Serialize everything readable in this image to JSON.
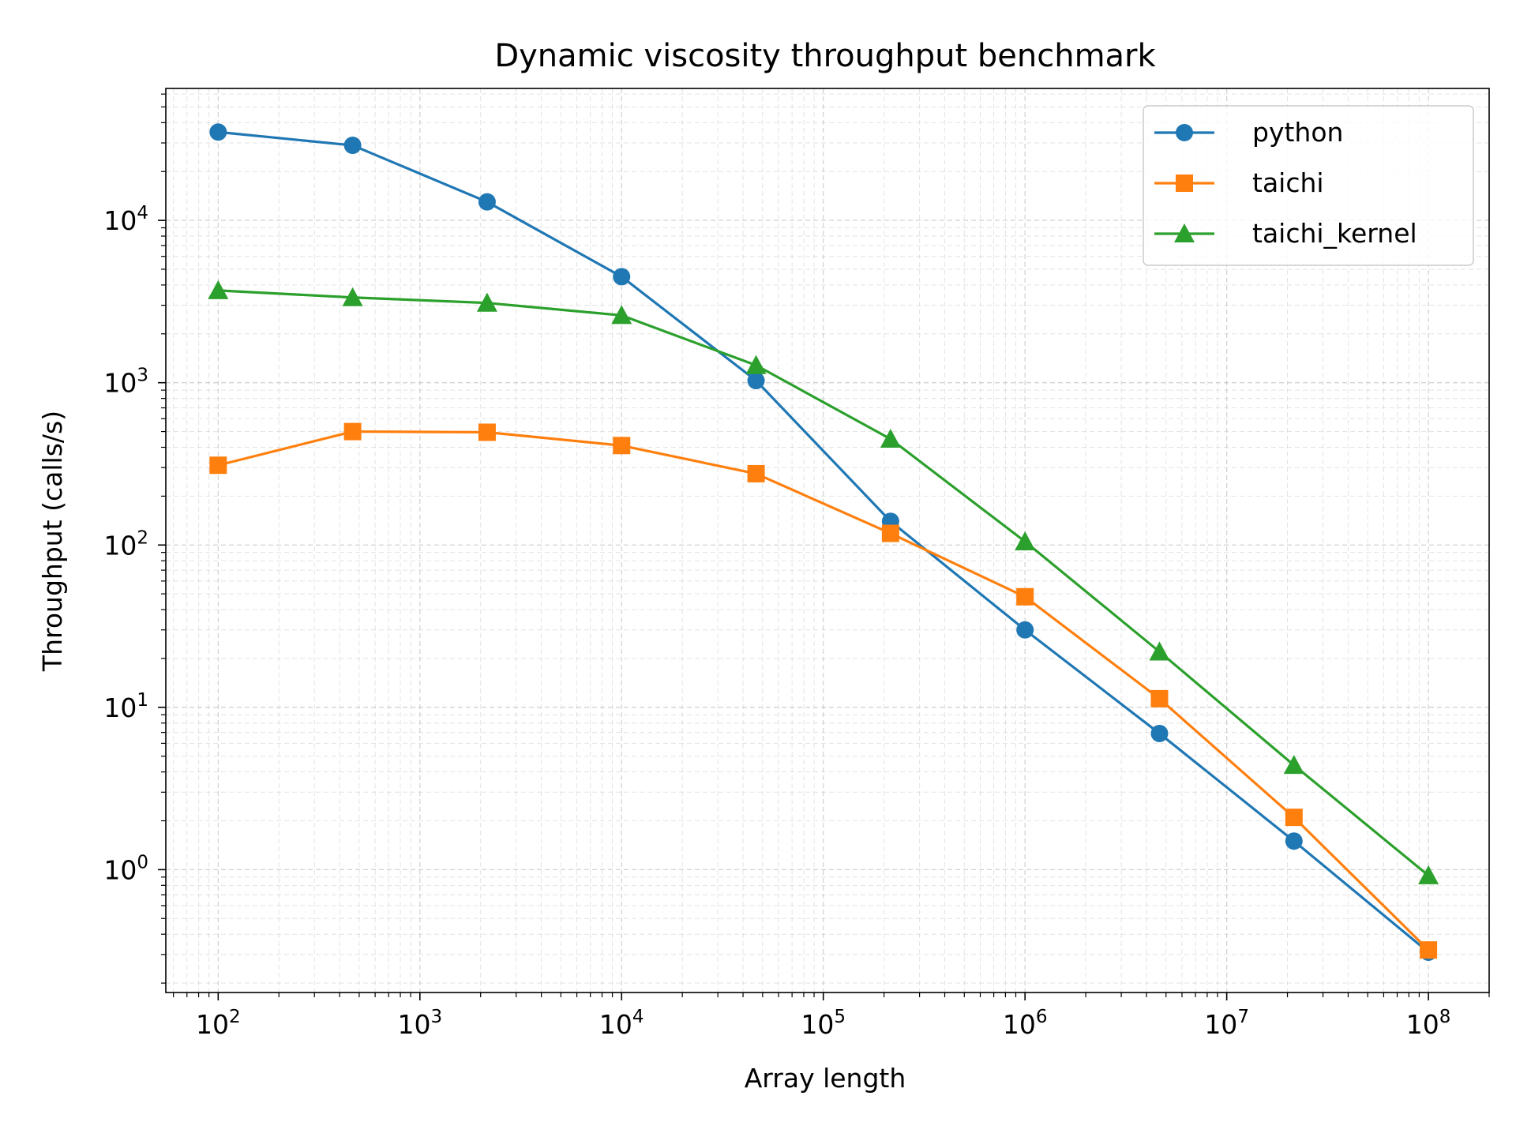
{
  "chart_data": {
    "type": "line",
    "title": "Dynamic viscosity throughput benchmark",
    "xlabel": "Array length",
    "ylabel": "Throughput (calls/s)",
    "xscale": "log",
    "yscale": "log",
    "xlim": [
      55,
      200000000
    ],
    "ylim": [
      0.175,
      65000
    ],
    "grid": true,
    "legend_position": "top-right",
    "x": [
      100,
      464,
      2154,
      10000,
      46416,
      215443,
      1000000,
      4641589,
      21544347,
      100000000
    ],
    "x_ticks": [
      {
        "base": "10",
        "exp": "2",
        "value": 100
      },
      {
        "base": "10",
        "exp": "3",
        "value": 1000
      },
      {
        "base": "10",
        "exp": "4",
        "value": 10000
      },
      {
        "base": "10",
        "exp": "5",
        "value": 100000
      },
      {
        "base": "10",
        "exp": "6",
        "value": 1000000
      },
      {
        "base": "10",
        "exp": "7",
        "value": 10000000
      },
      {
        "base": "10",
        "exp": "8",
        "value": 100000000
      }
    ],
    "y_ticks": [
      {
        "base": "10",
        "exp": "0",
        "value": 1
      },
      {
        "base": "10",
        "exp": "1",
        "value": 10
      },
      {
        "base": "10",
        "exp": "2",
        "value": 100
      },
      {
        "base": "10",
        "exp": "3",
        "value": 1000
      },
      {
        "base": "10",
        "exp": "4",
        "value": 10000
      }
    ],
    "series": [
      {
        "name": "python",
        "color": "#1f77b4",
        "marker": "circle",
        "values": [
          35000,
          29000,
          13000,
          4500,
          1030,
          140,
          30,
          6.9,
          1.5,
          0.31
        ]
      },
      {
        "name": "taichi",
        "color": "#ff7f0e",
        "marker": "square",
        "values": [
          310,
          500,
          495,
          410,
          275,
          118,
          48,
          11.3,
          2.1,
          0.32
        ]
      },
      {
        "name": "taichi_kernel",
        "color": "#2ca02c",
        "marker": "triangle",
        "values": [
          3700,
          3350,
          3100,
          2600,
          1280,
          450,
          105,
          22,
          4.4,
          0.92
        ]
      }
    ]
  }
}
